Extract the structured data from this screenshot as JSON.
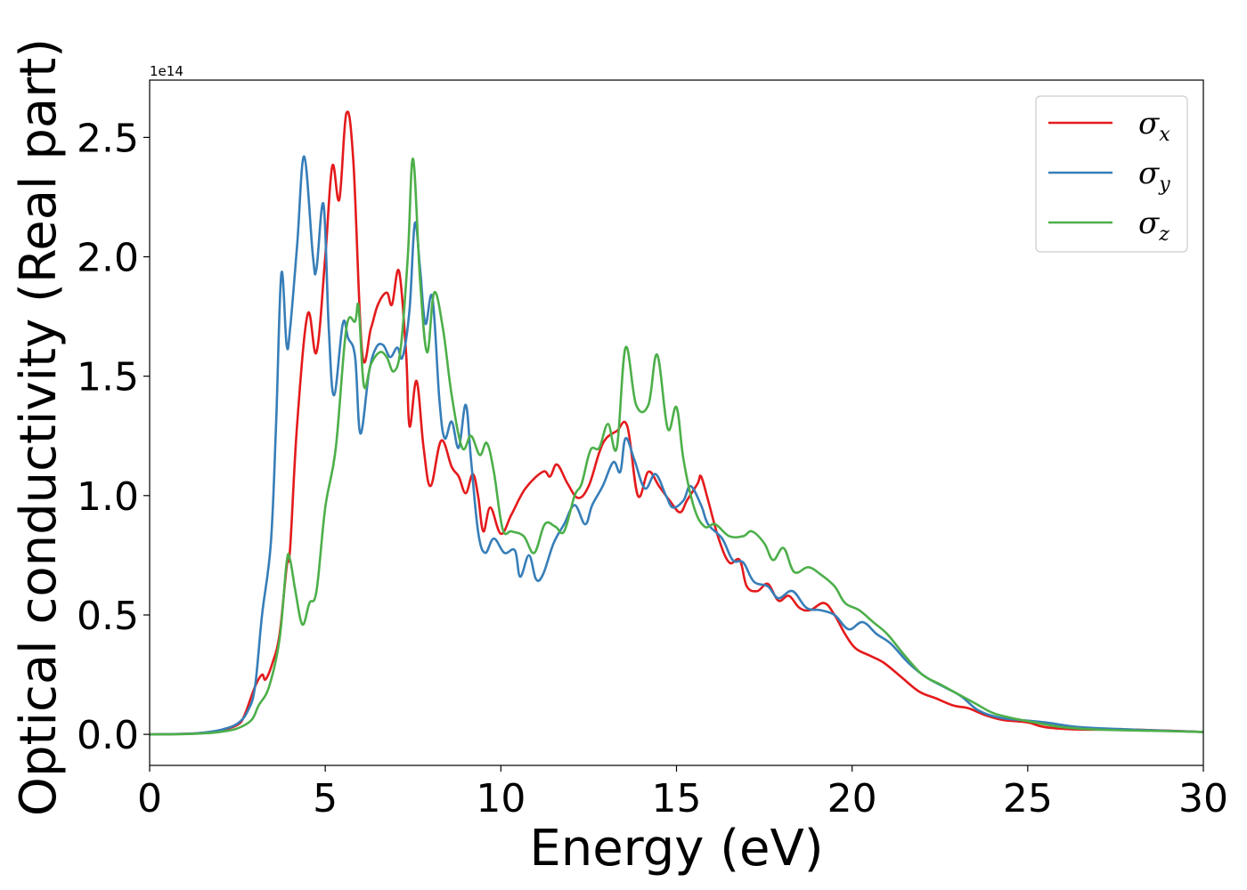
{
  "chart_data": {
    "type": "line",
    "xlabel": "Energy (eV)",
    "ylabel": "Optical conductivity (Real part)",
    "y_offset_text": "1e14",
    "xlim": [
      0,
      30
    ],
    "ylim": [
      -0.13,
      2.74
    ],
    "x_ticks": [
      0,
      5,
      10,
      15,
      20,
      25,
      30
    ],
    "x_tick_labels": [
      "0",
      "5",
      "10",
      "15",
      "20",
      "25",
      "30"
    ],
    "y_ticks": [
      0.0,
      0.5,
      1.0,
      1.5,
      2.0,
      2.5
    ],
    "y_tick_labels": [
      "0.0",
      "0.5",
      "1.0",
      "1.5",
      "2.0",
      "2.5"
    ],
    "grid": false,
    "legend_position": "top-right",
    "series": [
      {
        "name": "σ",
        "subscript": "x",
        "color": "#e41a1c",
        "points": [
          [
            0,
            0
          ],
          [
            1,
            0.002
          ],
          [
            1.5,
            0.006
          ],
          [
            2,
            0.015
          ],
          [
            2.5,
            0.04
          ],
          [
            2.7,
            0.08
          ],
          [
            3,
            0.2
          ],
          [
            3.2,
            0.25
          ],
          [
            3.3,
            0.23
          ],
          [
            3.5,
            0.3
          ],
          [
            3.7,
            0.42
          ],
          [
            3.9,
            0.7
          ],
          [
            4,
            0.78
          ],
          [
            4.2,
            1.3
          ],
          [
            4.5,
            1.76
          ],
          [
            4.75,
            1.6
          ],
          [
            5,
            2.0
          ],
          [
            5.2,
            2.38
          ],
          [
            5.4,
            2.24
          ],
          [
            5.6,
            2.6
          ],
          [
            5.8,
            2.4
          ],
          [
            6.05,
            1.6
          ],
          [
            6.3,
            1.7
          ],
          [
            6.5,
            1.8
          ],
          [
            6.75,
            1.85
          ],
          [
            6.9,
            1.8
          ],
          [
            7.1,
            1.94
          ],
          [
            7.3,
            1.6
          ],
          [
            7.4,
            1.29
          ],
          [
            7.6,
            1.48
          ],
          [
            7.8,
            1.2
          ],
          [
            8,
            1.04
          ],
          [
            8.3,
            1.23
          ],
          [
            8.6,
            1.12
          ],
          [
            8.8,
            1.08
          ],
          [
            9,
            1.01
          ],
          [
            9.2,
            1.09
          ],
          [
            9.35,
            1.0
          ],
          [
            9.5,
            0.85
          ],
          [
            9.7,
            0.95
          ],
          [
            10,
            0.84
          ],
          [
            10.3,
            0.92
          ],
          [
            10.7,
            1.03
          ],
          [
            11.2,
            1.1
          ],
          [
            11.4,
            1.08
          ],
          [
            11.6,
            1.13
          ],
          [
            11.9,
            1.05
          ],
          [
            12.2,
            0.99
          ],
          [
            12.5,
            1.04
          ],
          [
            12.8,
            1.18
          ],
          [
            13,
            1.24
          ],
          [
            13.3,
            1.27
          ],
          [
            13.6,
            1.29
          ],
          [
            13.9,
            1.0
          ],
          [
            14.2,
            1.1
          ],
          [
            14.5,
            1.04
          ],
          [
            14.8,
            0.98
          ],
          [
            15.1,
            0.93
          ],
          [
            15.3,
            0.98
          ],
          [
            15.6,
            1.05
          ],
          [
            15.7,
            1.08
          ],
          [
            15.9,
            0.98
          ],
          [
            16.2,
            0.82
          ],
          [
            16.5,
            0.72
          ],
          [
            16.8,
            0.73
          ],
          [
            17,
            0.62
          ],
          [
            17.3,
            0.6
          ],
          [
            17.6,
            0.63
          ],
          [
            17.9,
            0.56
          ],
          [
            18.2,
            0.58
          ],
          [
            18.5,
            0.53
          ],
          [
            18.8,
            0.52
          ],
          [
            19.2,
            0.55
          ],
          [
            19.5,
            0.5
          ],
          [
            19.8,
            0.42
          ],
          [
            20.1,
            0.36
          ],
          [
            20.5,
            0.33
          ],
          [
            20.9,
            0.3
          ],
          [
            21.4,
            0.24
          ],
          [
            21.9,
            0.18
          ],
          [
            22.4,
            0.15
          ],
          [
            22.9,
            0.12
          ],
          [
            23.3,
            0.11
          ],
          [
            23.8,
            0.08
          ],
          [
            24.3,
            0.06
          ],
          [
            25,
            0.05
          ],
          [
            25.5,
            0.03
          ],
          [
            26.5,
            0.02
          ],
          [
            28,
            0.02
          ],
          [
            30,
            0.01
          ]
        ]
      },
      {
        "name": "σ",
        "subscript": "y",
        "color": "#377eb8",
        "points": [
          [
            0,
            0
          ],
          [
            1,
            0.002
          ],
          [
            1.5,
            0.007
          ],
          [
            2,
            0.018
          ],
          [
            2.5,
            0.045
          ],
          [
            2.8,
            0.1
          ],
          [
            3,
            0.2
          ],
          [
            3.2,
            0.5
          ],
          [
            3.45,
            0.8
          ],
          [
            3.6,
            1.3
          ],
          [
            3.75,
            1.93
          ],
          [
            3.9,
            1.63
          ],
          [
            4,
            1.7
          ],
          [
            4.2,
            2.05
          ],
          [
            4.4,
            2.42
          ],
          [
            4.65,
            2.0
          ],
          [
            4.75,
            1.95
          ],
          [
            4.95,
            2.22
          ],
          [
            5.1,
            1.7
          ],
          [
            5.25,
            1.42
          ],
          [
            5.5,
            1.72
          ],
          [
            5.65,
            1.66
          ],
          [
            5.85,
            1.58
          ],
          [
            6,
            1.26
          ],
          [
            6.25,
            1.52
          ],
          [
            6.45,
            1.62
          ],
          [
            6.65,
            1.63
          ],
          [
            6.85,
            1.58
          ],
          [
            7.05,
            1.62
          ],
          [
            7.2,
            1.58
          ],
          [
            7.4,
            1.78
          ],
          [
            7.55,
            2.14
          ],
          [
            7.7,
            1.95
          ],
          [
            7.85,
            1.72
          ],
          [
            8.05,
            1.83
          ],
          [
            8.25,
            1.4
          ],
          [
            8.4,
            1.24
          ],
          [
            8.6,
            1.31
          ],
          [
            8.8,
            1.2
          ],
          [
            9,
            1.38
          ],
          [
            9.15,
            1.15
          ],
          [
            9.35,
            0.85
          ],
          [
            9.55,
            0.76
          ],
          [
            9.8,
            0.82
          ],
          [
            10.1,
            0.76
          ],
          [
            10.4,
            0.77
          ],
          [
            10.55,
            0.66
          ],
          [
            10.8,
            0.75
          ],
          [
            11,
            0.65
          ],
          [
            11.2,
            0.67
          ],
          [
            11.5,
            0.8
          ],
          [
            11.8,
            0.88
          ],
          [
            12.1,
            0.96
          ],
          [
            12.4,
            0.88
          ],
          [
            12.6,
            0.96
          ],
          [
            12.9,
            1.04
          ],
          [
            13.2,
            1.14
          ],
          [
            13.4,
            1.1
          ],
          [
            13.55,
            1.24
          ],
          [
            13.8,
            1.15
          ],
          [
            14.1,
            1.03
          ],
          [
            14.4,
            1.09
          ],
          [
            14.7,
            1.0
          ],
          [
            14.9,
            0.95
          ],
          [
            15.2,
            0.98
          ],
          [
            15.4,
            1.04
          ],
          [
            15.7,
            0.96
          ],
          [
            15.9,
            0.88
          ],
          [
            16.3,
            0.82
          ],
          [
            16.6,
            0.73
          ],
          [
            16.9,
            0.72
          ],
          [
            17.2,
            0.64
          ],
          [
            17.6,
            0.62
          ],
          [
            17.9,
            0.57
          ],
          [
            18.3,
            0.6
          ],
          [
            18.7,
            0.53
          ],
          [
            19.1,
            0.52
          ],
          [
            19.5,
            0.5
          ],
          [
            19.9,
            0.44
          ],
          [
            20.3,
            0.47
          ],
          [
            20.7,
            0.42
          ],
          [
            21.1,
            0.38
          ],
          [
            21.6,
            0.3
          ],
          [
            22.1,
            0.24
          ],
          [
            22.6,
            0.2
          ],
          [
            23.1,
            0.16
          ],
          [
            23.6,
            0.1
          ],
          [
            24.2,
            0.07
          ],
          [
            24.8,
            0.06
          ],
          [
            25.5,
            0.05
          ],
          [
            26.5,
            0.03
          ],
          [
            28,
            0.02
          ],
          [
            30,
            0.01
          ]
        ]
      },
      {
        "name": "σ",
        "subscript": "z",
        "color": "#4daf4a",
        "points": [
          [
            0,
            0
          ],
          [
            1,
            0.001
          ],
          [
            1.5,
            0.004
          ],
          [
            2,
            0.01
          ],
          [
            2.5,
            0.025
          ],
          [
            2.9,
            0.06
          ],
          [
            3.1,
            0.12
          ],
          [
            3.4,
            0.2
          ],
          [
            3.7,
            0.4
          ],
          [
            3.9,
            0.72
          ],
          [
            4,
            0.73
          ],
          [
            4.15,
            0.6
          ],
          [
            4.35,
            0.46
          ],
          [
            4.55,
            0.55
          ],
          [
            4.75,
            0.6
          ],
          [
            5,
            0.95
          ],
          [
            5.3,
            1.2
          ],
          [
            5.6,
            1.7
          ],
          [
            5.85,
            1.73
          ],
          [
            5.95,
            1.79
          ],
          [
            6.1,
            1.46
          ],
          [
            6.3,
            1.55
          ],
          [
            6.55,
            1.6
          ],
          [
            6.75,
            1.58
          ],
          [
            6.95,
            1.52
          ],
          [
            7.15,
            1.62
          ],
          [
            7.35,
            2.0
          ],
          [
            7.5,
            2.41
          ],
          [
            7.7,
            1.9
          ],
          [
            7.9,
            1.6
          ],
          [
            8.1,
            1.85
          ],
          [
            8.35,
            1.7
          ],
          [
            8.6,
            1.42
          ],
          [
            8.9,
            1.2
          ],
          [
            9.15,
            1.25
          ],
          [
            9.4,
            1.17
          ],
          [
            9.6,
            1.22
          ],
          [
            9.8,
            1.1
          ],
          [
            10.05,
            0.86
          ],
          [
            10.3,
            0.85
          ],
          [
            10.65,
            0.83
          ],
          [
            10.95,
            0.76
          ],
          [
            11.25,
            0.88
          ],
          [
            11.55,
            0.87
          ],
          [
            11.8,
            0.85
          ],
          [
            12.1,
            1.0
          ],
          [
            12.3,
            1.05
          ],
          [
            12.55,
            1.19
          ],
          [
            12.8,
            1.2
          ],
          [
            13.05,
            1.3
          ],
          [
            13.3,
            1.2
          ],
          [
            13.55,
            1.62
          ],
          [
            13.85,
            1.38
          ],
          [
            14.2,
            1.38
          ],
          [
            14.45,
            1.59
          ],
          [
            14.75,
            1.28
          ],
          [
            15,
            1.37
          ],
          [
            15.2,
            1.15
          ],
          [
            15.5,
            0.95
          ],
          [
            15.8,
            0.87
          ],
          [
            16.1,
            0.88
          ],
          [
            16.5,
            0.83
          ],
          [
            16.9,
            0.83
          ],
          [
            17.15,
            0.85
          ],
          [
            17.5,
            0.8
          ],
          [
            17.75,
            0.73
          ],
          [
            18.05,
            0.78
          ],
          [
            18.35,
            0.68
          ],
          [
            18.75,
            0.7
          ],
          [
            19.1,
            0.67
          ],
          [
            19.5,
            0.62
          ],
          [
            19.8,
            0.55
          ],
          [
            20.2,
            0.52
          ],
          [
            20.6,
            0.47
          ],
          [
            21,
            0.42
          ],
          [
            21.5,
            0.33
          ],
          [
            22,
            0.25
          ],
          [
            22.5,
            0.21
          ],
          [
            23,
            0.17
          ],
          [
            23.5,
            0.13
          ],
          [
            24,
            0.09
          ],
          [
            24.5,
            0.07
          ],
          [
            25.2,
            0.05
          ],
          [
            26,
            0.03
          ],
          [
            27,
            0.02
          ],
          [
            28.5,
            0.015
          ],
          [
            30,
            0.01
          ]
        ]
      }
    ]
  }
}
